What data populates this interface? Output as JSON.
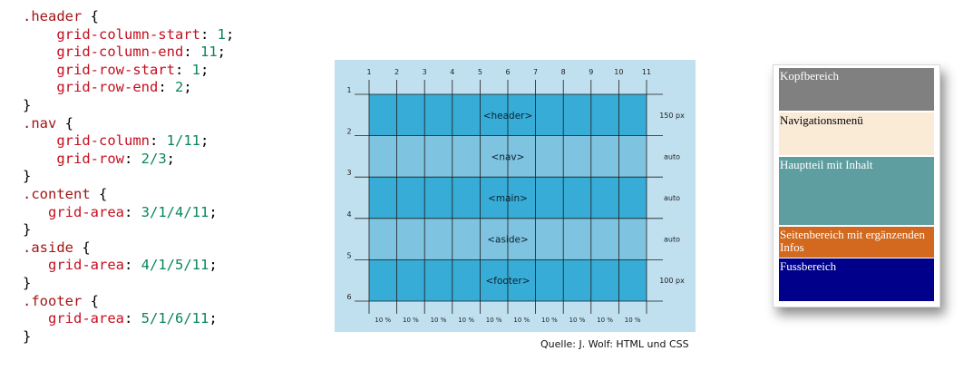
{
  "code": {
    "blocks": [
      {
        "selector": ".header",
        "indent": "    ",
        "decls": [
          {
            "prop": "grid-column-start",
            "val": "1"
          },
          {
            "prop": "grid-column-end",
            "val": "11"
          },
          {
            "prop": "grid-row-start",
            "val": "1"
          },
          {
            "prop": "grid-row-end",
            "val": "2"
          }
        ]
      },
      {
        "selector": ".nav",
        "indent": "    ",
        "decls": [
          {
            "prop": "grid-column",
            "val": "1/11"
          },
          {
            "prop": "grid-row",
            "val": "2/3"
          }
        ]
      },
      {
        "selector": ".content",
        "indent": "   ",
        "decls": [
          {
            "prop": "grid-area",
            "val": "3/1/4/11"
          }
        ]
      },
      {
        "selector": ".aside",
        "indent": "   ",
        "decls": [
          {
            "prop": "grid-area",
            "val": "4/1/5/11"
          }
        ]
      },
      {
        "selector": ".footer",
        "indent": "   ",
        "decls": [
          {
            "prop": "grid-area",
            "val": "5/1/6/11"
          }
        ]
      }
    ]
  },
  "diagram": {
    "column_lines": [
      "1",
      "2",
      "3",
      "4",
      "5",
      "6",
      "7",
      "8",
      "9",
      "10",
      "11"
    ],
    "row_lines": [
      "1",
      "2",
      "3",
      "4",
      "5",
      "6"
    ],
    "rows": [
      {
        "label": "<header>",
        "size": "150 px",
        "color": "#36acd6"
      },
      {
        "label": "<nav>",
        "size": "auto",
        "color": "#7ec4e0"
      },
      {
        "label": "<main>",
        "size": "auto",
        "color": "#36acd6"
      },
      {
        "label": "<aside>",
        "size": "auto",
        "color": "#7ec4e0"
      },
      {
        "label": "<footer>",
        "size": "100 px",
        "color": "#36acd6"
      }
    ],
    "column_widths": [
      "10 %",
      "10 %",
      "10 %",
      "10 %",
      "10 %",
      "10 %",
      "10 %",
      "10 %",
      "10 %",
      "10 %"
    ],
    "source": "Quelle: J. Wolf: HTML und CSS"
  },
  "preview": {
    "header": "Kopfbereich",
    "nav": "Navigationsmenü",
    "main": "Hauptteil mit Inhalt",
    "aside": "Seitenbereich mit ergänzenden Infos",
    "footer": "Fussbereich"
  },
  "colors": {
    "header": "#808080",
    "nav": "#faebd7",
    "main": "#5f9ea0",
    "aside": "#d2691e",
    "footer": "#00008b",
    "diagram_background": "#c0e0f0"
  }
}
